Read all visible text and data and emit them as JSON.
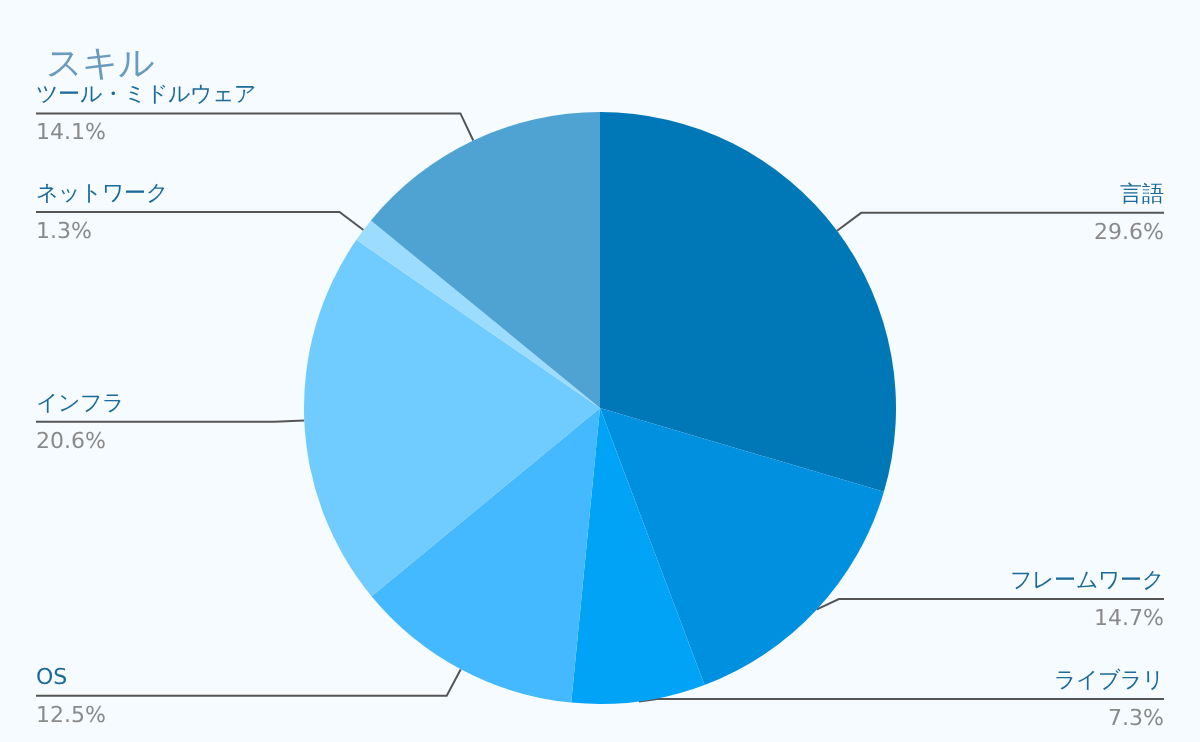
{
  "chart_data": {
    "type": "pie",
    "title": "スキル",
    "categories": [
      "言語",
      "フレームワーク",
      "ライブラリ",
      "OS",
      "インフラ",
      "ネットワーク",
      "ツール・ミドルウェア"
    ],
    "values": [
      29.6,
      14.7,
      7.3,
      12.5,
      20.6,
      1.3,
      14.1
    ],
    "value_labels": [
      "29.6%",
      "14.7%",
      "7.3%",
      "12.5%",
      "20.6%",
      "1.3%",
      "14.1%"
    ],
    "colors": [
      "#0077b6",
      "#0090e0",
      "#00a3f5",
      "#45b9ff",
      "#70cbff",
      "#9cdcff",
      "#4fa3d2"
    ],
    "legend": false
  }
}
